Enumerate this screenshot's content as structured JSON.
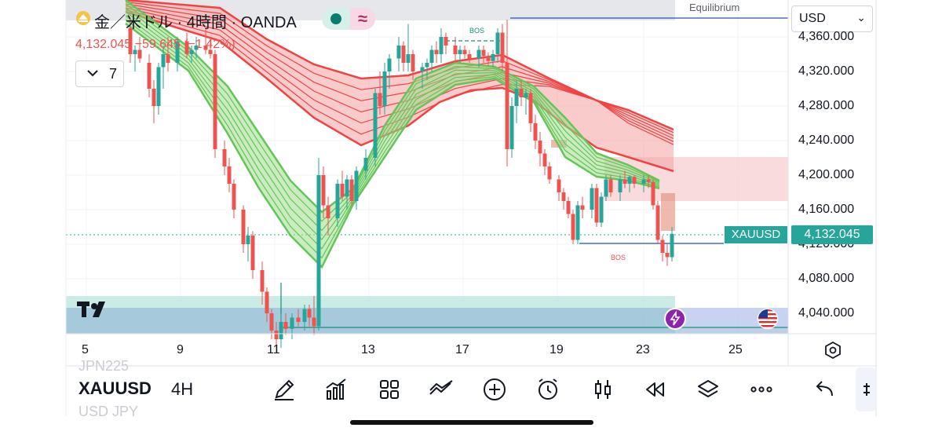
{
  "header": {
    "title": "金／米ドル · 4時間 · OANDA",
    "ohlc_text": "4,132.045 −59.645 (−1.42%)",
    "indicator_count": "7",
    "currency_select": "USD",
    "wave_symbol": "≈"
  },
  "chart": {
    "symbol_label": "XAUUSD",
    "current_price": "4,132.045",
    "equilibrium_label": "Equilibrium",
    "bos_labels": [
      "BOS",
      "BOS"
    ],
    "price_axis": [
      "4,360.000",
      "4,320.000",
      "4,280.000",
      "4,240.000",
      "4,200.000",
      "4,160.000",
      "4,120.000",
      "4,080.000",
      "4,040.000"
    ],
    "time_axis": [
      "5",
      "9",
      "11",
      "13",
      "17",
      "19",
      "23",
      "25"
    ],
    "colors": {
      "up": "#26a69a",
      "down": "#ef5350",
      "green_band": "#66c45a",
      "red_band": "#ef4444",
      "teal_zone": "#b9e4dd",
      "blue_zone": "#8fb2d6"
    }
  },
  "toolbar": {
    "symbol": "XAUUSD",
    "interval": "4H",
    "ghost_prev": "JPN225",
    "ghost_next": "USD JPY",
    "icons": [
      "pen-icon",
      "indicators-icon",
      "layout-grid-icon",
      "compare-icon",
      "add-icon",
      "alert-clock-icon",
      "candle-type-icon",
      "replay-icon",
      "layers-icon",
      "more-icon",
      "undo-icon"
    ]
  }
}
